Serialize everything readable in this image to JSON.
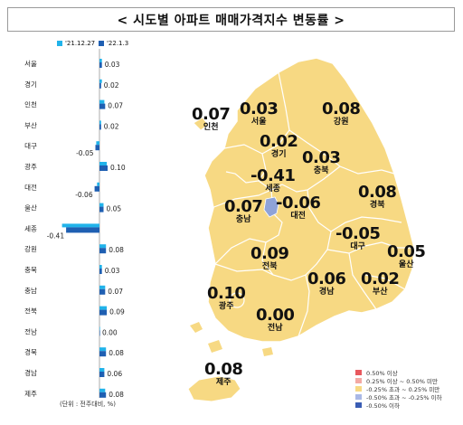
{
  "title": "< 시도별 아파트 매매가격지수 변동률 >",
  "colors": {
    "prev": "#21b3ea",
    "curr": "#1f5fb2",
    "map_fill": "#f7d983",
    "map_stroke": "#ffffff",
    "sejong_fill": "#8fa3d8"
  },
  "chart_data": {
    "type": "bar",
    "orientation": "horizontal",
    "categories": [
      "서울",
      "경기",
      "인천",
      "부산",
      "대구",
      "광주",
      "대전",
      "울산",
      "세종",
      "강원",
      "충북",
      "충남",
      "전북",
      "전남",
      "경북",
      "경남",
      "제주"
    ],
    "series": [
      {
        "name": "'21.12.27",
        "values": [
          0.03,
          0.03,
          0.06,
          0.02,
          -0.04,
          0.09,
          -0.03,
          0.05,
          -0.46,
          0.08,
          0.03,
          0.07,
          0.09,
          0.0,
          0.08,
          0.06,
          0.07
        ]
      },
      {
        "name": "'22.1.3",
        "values": [
          0.03,
          0.02,
          0.07,
          0.02,
          -0.05,
          0.1,
          -0.06,
          0.05,
          -0.41,
          0.08,
          0.03,
          0.07,
          0.09,
          0.0,
          0.08,
          0.06,
          0.08
        ]
      }
    ],
    "value_labels": [
      "0.03",
      "0.02",
      "0.07",
      "0.02",
      "-0.05",
      "0.10",
      "-0.06",
      "0.05",
      "-0.41",
      "0.08",
      "0.03",
      "0.07",
      "0.09",
      "0.00",
      "0.08",
      "0.06",
      "0.08"
    ],
    "unit_note": "(단위 : 전주대비, %)"
  },
  "map": {
    "labels": [
      {
        "name": "인천",
        "value": "0.07"
      },
      {
        "name": "서울",
        "value": "0.03"
      },
      {
        "name": "강원",
        "value": "0.08"
      },
      {
        "name": "경기",
        "value": "0.02"
      },
      {
        "name": "충북",
        "value": "0.03"
      },
      {
        "name": "세종",
        "value": "-0.41"
      },
      {
        "name": "대전",
        "value": "-0.06"
      },
      {
        "name": "충남",
        "value": "0.07"
      },
      {
        "name": "경북",
        "value": "0.08"
      },
      {
        "name": "대구",
        "value": "-0.05"
      },
      {
        "name": "울산",
        "value": "0.05"
      },
      {
        "name": "전북",
        "value": "0.09"
      },
      {
        "name": "경남",
        "value": "0.06"
      },
      {
        "name": "부산",
        "value": "0.02"
      },
      {
        "name": "광주",
        "value": "0.10"
      },
      {
        "name": "전남",
        "value": "0.00"
      },
      {
        "name": "제주",
        "value": "0.08"
      }
    ],
    "legend": [
      {
        "label": "0.50% 이상",
        "color": "#e8585e"
      },
      {
        "label": "0.25% 이상 ~ 0.50% 미만",
        "color": "#f3a9a3"
      },
      {
        "label": "-0.25% 초과 ~ 0.25% 미만",
        "color": "#f7d983"
      },
      {
        "label": "-0.50% 초과 ~ -0.25% 이하",
        "color": "#a9b8e6"
      },
      {
        "label": "-0.50% 이하",
        "color": "#3a5db4"
      }
    ]
  }
}
